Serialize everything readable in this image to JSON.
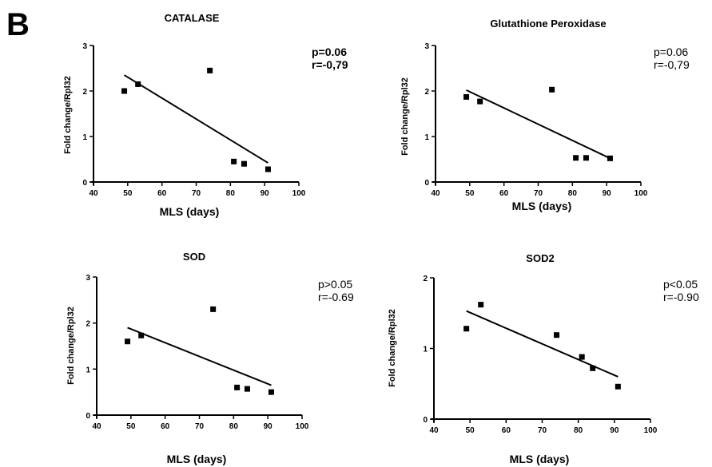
{
  "panel_letter": "B",
  "chart_data": [
    {
      "type": "scatter",
      "title": "CATALASE",
      "xlabel": "MLS (days)",
      "ylabel": "Fold change/Rpl32",
      "xlim": [
        40,
        100
      ],
      "ylim": [
        0,
        3
      ],
      "xticks": [
        "40",
        "50",
        "60",
        "70",
        "80",
        "90",
        "100"
      ],
      "yticks": [
        "0",
        "1",
        "2",
        "3"
      ],
      "points": [
        {
          "x": 49,
          "y": 2.0
        },
        {
          "x": 53,
          "y": 2.15
        },
        {
          "x": 74,
          "y": 2.45
        },
        {
          "x": 81,
          "y": 0.45
        },
        {
          "x": 84,
          "y": 0.4
        },
        {
          "x": 91,
          "y": 0.28
        }
      ],
      "fit_line": {
        "x": [
          49,
          91
        ],
        "y": [
          2.35,
          0.42
        ]
      },
      "stats": [
        "p=0.06",
        "r=-0,79"
      ],
      "stats_bold": true
    },
    {
      "type": "scatter",
      "title": "Glutathione Peroxidase",
      "xlabel": "MLS (days)",
      "ylabel": "Fold change/Rpl32",
      "xlim": [
        40,
        100
      ],
      "ylim": [
        0,
        3
      ],
      "xticks": [
        "40",
        "50",
        "60",
        "70",
        "80",
        "90",
        "100"
      ],
      "yticks": [
        "0",
        "1",
        "2",
        "3"
      ],
      "points": [
        {
          "x": 49,
          "y": 1.87
        },
        {
          "x": 53,
          "y": 1.77
        },
        {
          "x": 74,
          "y": 2.03
        },
        {
          "x": 81,
          "y": 0.53
        },
        {
          "x": 84,
          "y": 0.53
        },
        {
          "x": 91,
          "y": 0.52
        }
      ],
      "fit_line": {
        "x": [
          49,
          91
        ],
        "y": [
          2.02,
          0.52
        ]
      },
      "stats": [
        "p=0.06",
        "r=-0,79"
      ],
      "stats_bold": false
    },
    {
      "type": "scatter",
      "title": "SOD",
      "xlabel": "MLS (days)",
      "ylabel": "Fold change/Rpl32",
      "xlim": [
        40,
        100
      ],
      "ylim": [
        0,
        3
      ],
      "xticks": [
        "40",
        "50",
        "60",
        "70",
        "80",
        "90",
        "100"
      ],
      "yticks": [
        "0",
        "1",
        "2",
        "3"
      ],
      "points": [
        {
          "x": 49,
          "y": 1.6
        },
        {
          "x": 53,
          "y": 1.73
        },
        {
          "x": 74,
          "y": 2.3
        },
        {
          "x": 81,
          "y": 0.6
        },
        {
          "x": 84,
          "y": 0.57
        },
        {
          "x": 91,
          "y": 0.5
        }
      ],
      "fit_line": {
        "x": [
          49,
          91
        ],
        "y": [
          1.9,
          0.65
        ]
      },
      "stats": [
        "p>0.05",
        "r=-0.69"
      ],
      "stats_bold": false
    },
    {
      "type": "scatter",
      "title": "SOD2",
      "xlabel": "MLS (days)",
      "ylabel": "Fold change/Rpl32",
      "xlim": [
        40,
        100
      ],
      "ylim": [
        0,
        2
      ],
      "xticks": [
        "40",
        "50",
        "60",
        "70",
        "80",
        "90",
        "100"
      ],
      "yticks": [
        "0",
        "1",
        "2"
      ],
      "points": [
        {
          "x": 49,
          "y": 1.28
        },
        {
          "x": 53,
          "y": 1.62
        },
        {
          "x": 74,
          "y": 1.19
        },
        {
          "x": 81,
          "y": 0.88
        },
        {
          "x": 84,
          "y": 0.72
        },
        {
          "x": 91,
          "y": 0.46
        }
      ],
      "fit_line": {
        "x": [
          49,
          91
        ],
        "y": [
          1.53,
          0.6
        ]
      },
      "stats": [
        "p<0.05",
        "r=-0.90"
      ],
      "stats_bold": false
    }
  ]
}
